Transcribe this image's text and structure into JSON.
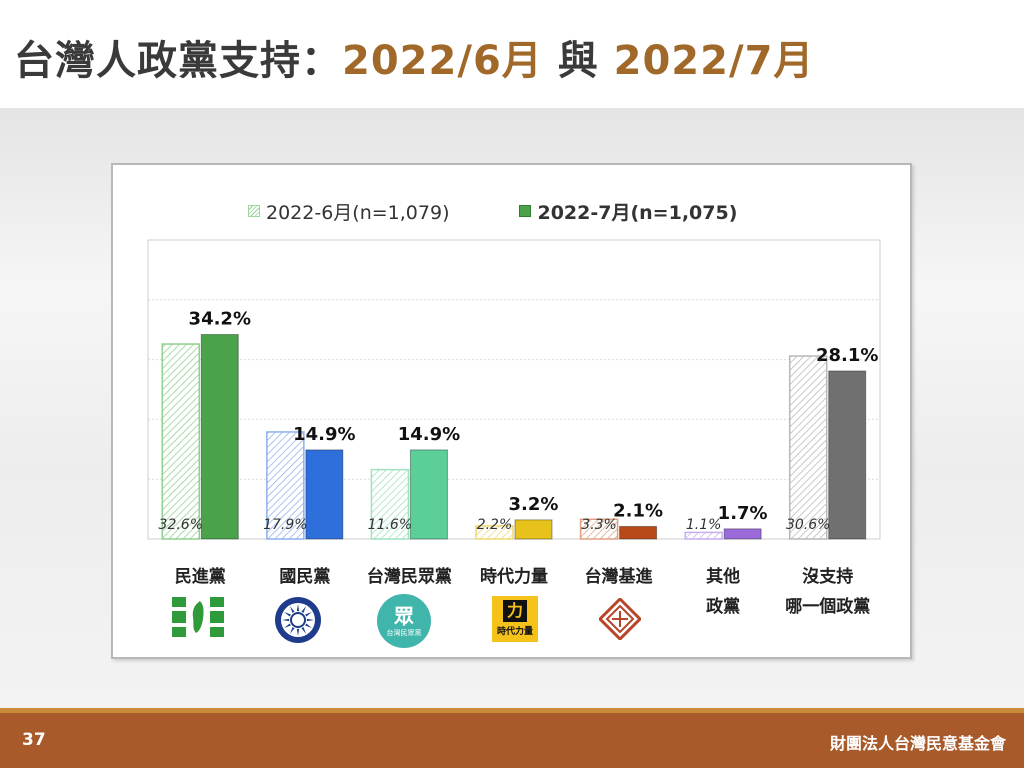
{
  "slide": {
    "title_main": "台灣人政黨支持：",
    "title_accent_1": "2022/6月",
    "title_mid": " 與 ",
    "title_accent_2": "2022/7月",
    "page_number": "37",
    "organization": "財團法人台灣民意基金會"
  },
  "legend": {
    "jun": "2022-6月(n=1,079)",
    "jul": "2022-7月(n=1,075)"
  },
  "logos": {
    "tpp_text": "台灣民眾黨",
    "npp_text": "時代力量"
  },
  "chart_data": {
    "type": "bar",
    "title": "",
    "xlabel": "",
    "ylabel": "",
    "ylim": [
      0,
      50
    ],
    "grid": true,
    "legend_position": "top",
    "categories": [
      "民進黨",
      "國民黨",
      "台灣民眾黨",
      "時代力量",
      "台灣基進",
      "其他 政黨",
      "沒支持 哪一個政黨"
    ],
    "category_lines": [
      [
        "民進黨"
      ],
      [
        "國民黨"
      ],
      [
        "台灣民眾黨"
      ],
      [
        "時代力量"
      ],
      [
        "台灣基進"
      ],
      [
        "其他",
        "政黨"
      ],
      [
        "沒支持",
        "哪一個政黨"
      ]
    ],
    "series": [
      {
        "name": "2022-6月(n=1,079)",
        "values": [
          32.6,
          17.9,
          11.6,
          2.2,
          3.3,
          1.1,
          30.6
        ],
        "labels": [
          "32.6%",
          "17.9%",
          "11.6%",
          "2.2%",
          "3.3%",
          "1.1%",
          "30.6%"
        ]
      },
      {
        "name": "2022-7月(n=1,075)",
        "values": [
          34.2,
          14.9,
          14.9,
          3.2,
          2.1,
          1.7,
          28.1
        ],
        "labels": [
          "34.2%",
          "14.9%",
          "14.9%",
          "3.2%",
          "2.1%",
          "1.7%",
          "28.1%"
        ]
      }
    ],
    "colors": {
      "jul": [
        "#4aa34a",
        "#2e6fdc",
        "#5ccf98",
        "#e6c21a",
        "#b84a1a",
        "#9a6ad8",
        "#707070"
      ],
      "jun_hatch": [
        "#8fd08f",
        "#8fb0ea",
        "#9de2bf",
        "#f0d870",
        "#e0a080",
        "#c7aef0",
        "#b8b8b8"
      ]
    }
  }
}
